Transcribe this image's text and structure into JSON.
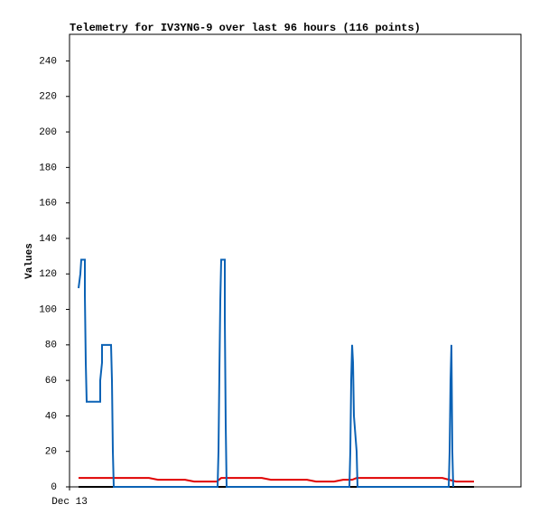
{
  "chart_data": {
    "type": "line",
    "title": "Telemetry for IV3YNG-9 over last 96 hours (116 points)",
    "ylabel": "Values",
    "xlim": [
      0,
      100
    ],
    "xticks": [
      {
        "value": 0,
        "label": "Dec 13"
      }
    ],
    "ylim": [
      0,
      255
    ],
    "yticks": [
      0,
      20,
      40,
      60,
      80,
      100,
      120,
      140,
      160,
      180,
      200,
      220,
      240
    ],
    "grid": false,
    "series": [
      {
        "color": "#0b62b5",
        "x": [
          2,
          2.4,
          2.6,
          3.4,
          3.4,
          3.6,
          3.8,
          6.8,
          6.8,
          7.2,
          7.2,
          9.2,
          9.4,
          9.6,
          9.8,
          32.8,
          33,
          33.2,
          33.4,
          33.6,
          34.4,
          34.4,
          34.6,
          34.8,
          62,
          62.2,
          62.4,
          62.6,
          62.8,
          63,
          63.6,
          63.8,
          84,
          84.2,
          84.4,
          84.6,
          84.8,
          85
        ],
        "values": [
          112,
          120,
          128,
          128,
          108,
          70,
          48,
          48,
          60,
          70,
          80,
          80,
          60,
          20,
          0,
          0,
          20,
          65,
          105,
          128,
          128,
          95,
          35,
          0,
          0,
          20,
          60,
          80,
          70,
          40,
          20,
          0,
          0,
          20,
          60,
          80,
          20,
          0
        ]
      },
      {
        "color": "#e00000",
        "x": [
          2,
          17.6,
          19.6,
          25.6,
          27.6,
          32.6,
          33.6,
          42.6,
          44.6,
          52.6,
          54.6,
          58.6,
          60.6,
          62.6,
          63.6,
          82.6,
          85.6,
          89.6
        ],
        "values": [
          5,
          5,
          4,
          4,
          3,
          3,
          5,
          5,
          4,
          4,
          3,
          3,
          4,
          4,
          5,
          5,
          3,
          3
        ]
      },
      {
        "color": "#000000",
        "x": [
          2,
          89.6
        ],
        "values": [
          0,
          0
        ]
      }
    ]
  }
}
